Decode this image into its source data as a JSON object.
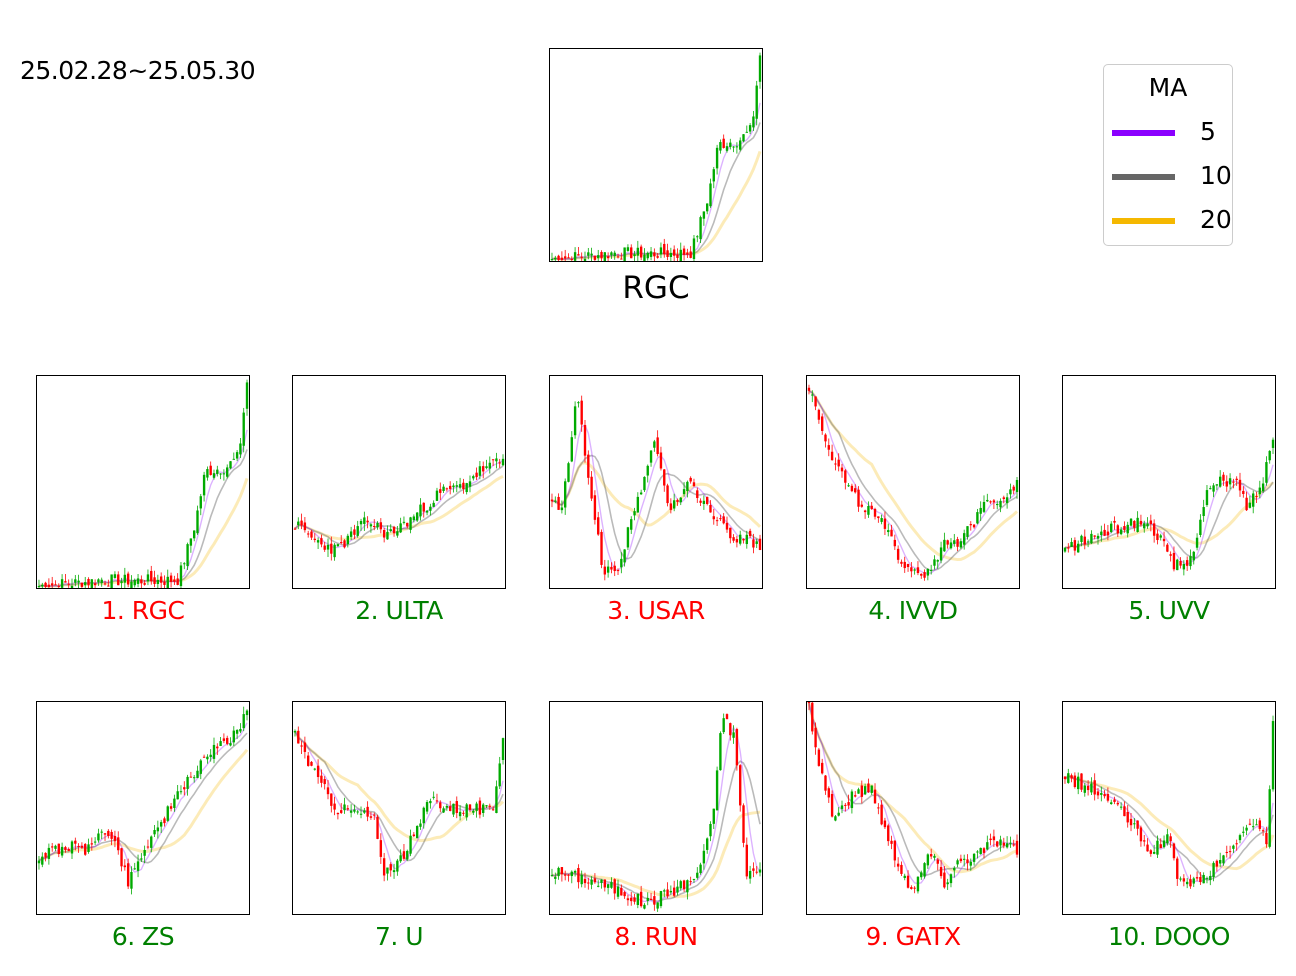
{
  "date_range": "25.02.28~25.05.30",
  "main_chart": {
    "title": "RGC",
    "series_key": "RGC"
  },
  "legend": {
    "title": "MA",
    "items": [
      {
        "label": "5",
        "color": "#8b00ff"
      },
      {
        "label": "10",
        "color": "#666666"
      },
      {
        "label": "20",
        "color": "#f5b800"
      }
    ]
  },
  "colors": {
    "up": "#00aa00",
    "down": "#ff0000",
    "label_up": "#008000",
    "label_down": "#ff0000"
  },
  "chart_data": [
    {
      "type": "candlestick",
      "ticker": "RGC",
      "label": "1. RGC",
      "label_color": "down",
      "trend": [
        [
          0,
          0.01
        ],
        [
          0.25,
          0.03
        ],
        [
          0.3,
          0.04
        ],
        [
          0.4,
          0.035
        ],
        [
          0.6,
          0.035
        ],
        [
          0.67,
          0.04
        ],
        [
          0.75,
          0.3
        ],
        [
          0.8,
          0.55
        ],
        [
          0.9,
          0.57
        ],
        [
          0.96,
          0.62
        ],
        [
          1,
          0.97
        ]
      ]
    },
    {
      "type": "candlestick",
      "ticker": "ULTA",
      "label": "2. ULTA",
      "label_color": "up",
      "trend": [
        [
          0,
          0.3
        ],
        [
          0.1,
          0.22
        ],
        [
          0.2,
          0.18
        ],
        [
          0.35,
          0.32
        ],
        [
          0.45,
          0.25
        ],
        [
          0.55,
          0.32
        ],
        [
          0.7,
          0.45
        ],
        [
          0.8,
          0.48
        ],
        [
          0.9,
          0.56
        ],
        [
          1,
          0.6
        ]
      ]
    },
    {
      "type": "candlestick",
      "ticker": "USAR",
      "label": "3. USAR",
      "label_color": "down",
      "trend": [
        [
          0,
          0.4
        ],
        [
          0.05,
          0.38
        ],
        [
          0.12,
          0.9
        ],
        [
          0.18,
          0.5
        ],
        [
          0.25,
          0.06
        ],
        [
          0.32,
          0.1
        ],
        [
          0.42,
          0.45
        ],
        [
          0.5,
          0.7
        ],
        [
          0.56,
          0.35
        ],
        [
          0.65,
          0.5
        ],
        [
          0.75,
          0.38
        ],
        [
          0.85,
          0.25
        ],
        [
          1,
          0.2
        ]
      ]
    },
    {
      "type": "candlestick",
      "ticker": "IVVD",
      "label": "4. IVVD",
      "label_color": "up",
      "trend": [
        [
          0,
          0.95
        ],
        [
          0.1,
          0.65
        ],
        [
          0.2,
          0.45
        ],
        [
          0.35,
          0.3
        ],
        [
          0.45,
          0.12
        ],
        [
          0.55,
          0.06
        ],
        [
          0.65,
          0.2
        ],
        [
          0.72,
          0.2
        ],
        [
          0.8,
          0.32
        ],
        [
          0.85,
          0.45
        ],
        [
          0.9,
          0.4
        ],
        [
          1,
          0.5
        ]
      ]
    },
    {
      "type": "candlestick",
      "ticker": "UVV",
      "label": "5. UVV",
      "label_color": "up",
      "trend": [
        [
          0,
          0.18
        ],
        [
          0.15,
          0.25
        ],
        [
          0.3,
          0.3
        ],
        [
          0.38,
          0.32
        ],
        [
          0.45,
          0.25
        ],
        [
          0.52,
          0.1
        ],
        [
          0.6,
          0.12
        ],
        [
          0.68,
          0.45
        ],
        [
          0.75,
          0.5
        ],
        [
          0.82,
          0.5
        ],
        [
          0.88,
          0.38
        ],
        [
          0.95,
          0.5
        ],
        [
          1,
          0.72
        ]
      ]
    },
    {
      "type": "candlestick",
      "ticker": "ZS",
      "label": "6. ZS",
      "label_color": "up",
      "trend": [
        [
          0,
          0.27
        ],
        [
          0.12,
          0.32
        ],
        [
          0.25,
          0.3
        ],
        [
          0.3,
          0.42
        ],
        [
          0.38,
          0.3
        ],
        [
          0.43,
          0.15
        ],
        [
          0.5,
          0.3
        ],
        [
          0.6,
          0.45
        ],
        [
          0.7,
          0.6
        ],
        [
          0.8,
          0.75
        ],
        [
          0.9,
          0.8
        ],
        [
          1,
          0.95
        ]
      ]
    },
    {
      "type": "candlestick",
      "ticker": "U",
      "label": "7. U",
      "label_color": "up",
      "trend": [
        [
          0,
          0.85
        ],
        [
          0.1,
          0.65
        ],
        [
          0.2,
          0.5
        ],
        [
          0.3,
          0.48
        ],
        [
          0.38,
          0.45
        ],
        [
          0.42,
          0.2
        ],
        [
          0.5,
          0.25
        ],
        [
          0.58,
          0.38
        ],
        [
          0.65,
          0.55
        ],
        [
          0.75,
          0.5
        ],
        [
          0.85,
          0.5
        ],
        [
          0.95,
          0.48
        ],
        [
          1,
          0.85
        ]
      ]
    },
    {
      "type": "candlestick",
      "ticker": "RUN",
      "label": "8. RUN",
      "label_color": "down",
      "trend": [
        [
          0,
          0.2
        ],
        [
          0.15,
          0.17
        ],
        [
          0.3,
          0.12
        ],
        [
          0.45,
          0.05
        ],
        [
          0.6,
          0.12
        ],
        [
          0.7,
          0.18
        ],
        [
          0.78,
          0.5
        ],
        [
          0.82,
          0.95
        ],
        [
          0.88,
          0.82
        ],
        [
          0.93,
          0.2
        ],
        [
          1,
          0.2
        ]
      ]
    },
    {
      "type": "candlestick",
      "ticker": "GATX",
      "label": "9. GATX",
      "label_color": "down",
      "trend": [
        [
          0,
          0.98
        ],
        [
          0.05,
          0.7
        ],
        [
          0.12,
          0.45
        ],
        [
          0.2,
          0.55
        ],
        [
          0.3,
          0.6
        ],
        [
          0.38,
          0.35
        ],
        [
          0.45,
          0.2
        ],
        [
          0.5,
          0.1
        ],
        [
          0.58,
          0.3
        ],
        [
          0.65,
          0.15
        ],
        [
          0.72,
          0.25
        ],
        [
          0.8,
          0.28
        ],
        [
          0.9,
          0.35
        ],
        [
          1,
          0.3
        ]
      ]
    },
    {
      "type": "candlestick",
      "ticker": "DOOO",
      "label": "10. DOOO",
      "label_color": "up",
      "trend": [
        [
          0,
          0.65
        ],
        [
          0.1,
          0.6
        ],
        [
          0.2,
          0.55
        ],
        [
          0.3,
          0.45
        ],
        [
          0.4,
          0.3
        ],
        [
          0.5,
          0.35
        ],
        [
          0.55,
          0.15
        ],
        [
          0.65,
          0.15
        ],
        [
          0.75,
          0.25
        ],
        [
          0.85,
          0.38
        ],
        [
          0.92,
          0.42
        ],
        [
          0.97,
          0.35
        ],
        [
          1,
          0.9
        ]
      ]
    }
  ]
}
